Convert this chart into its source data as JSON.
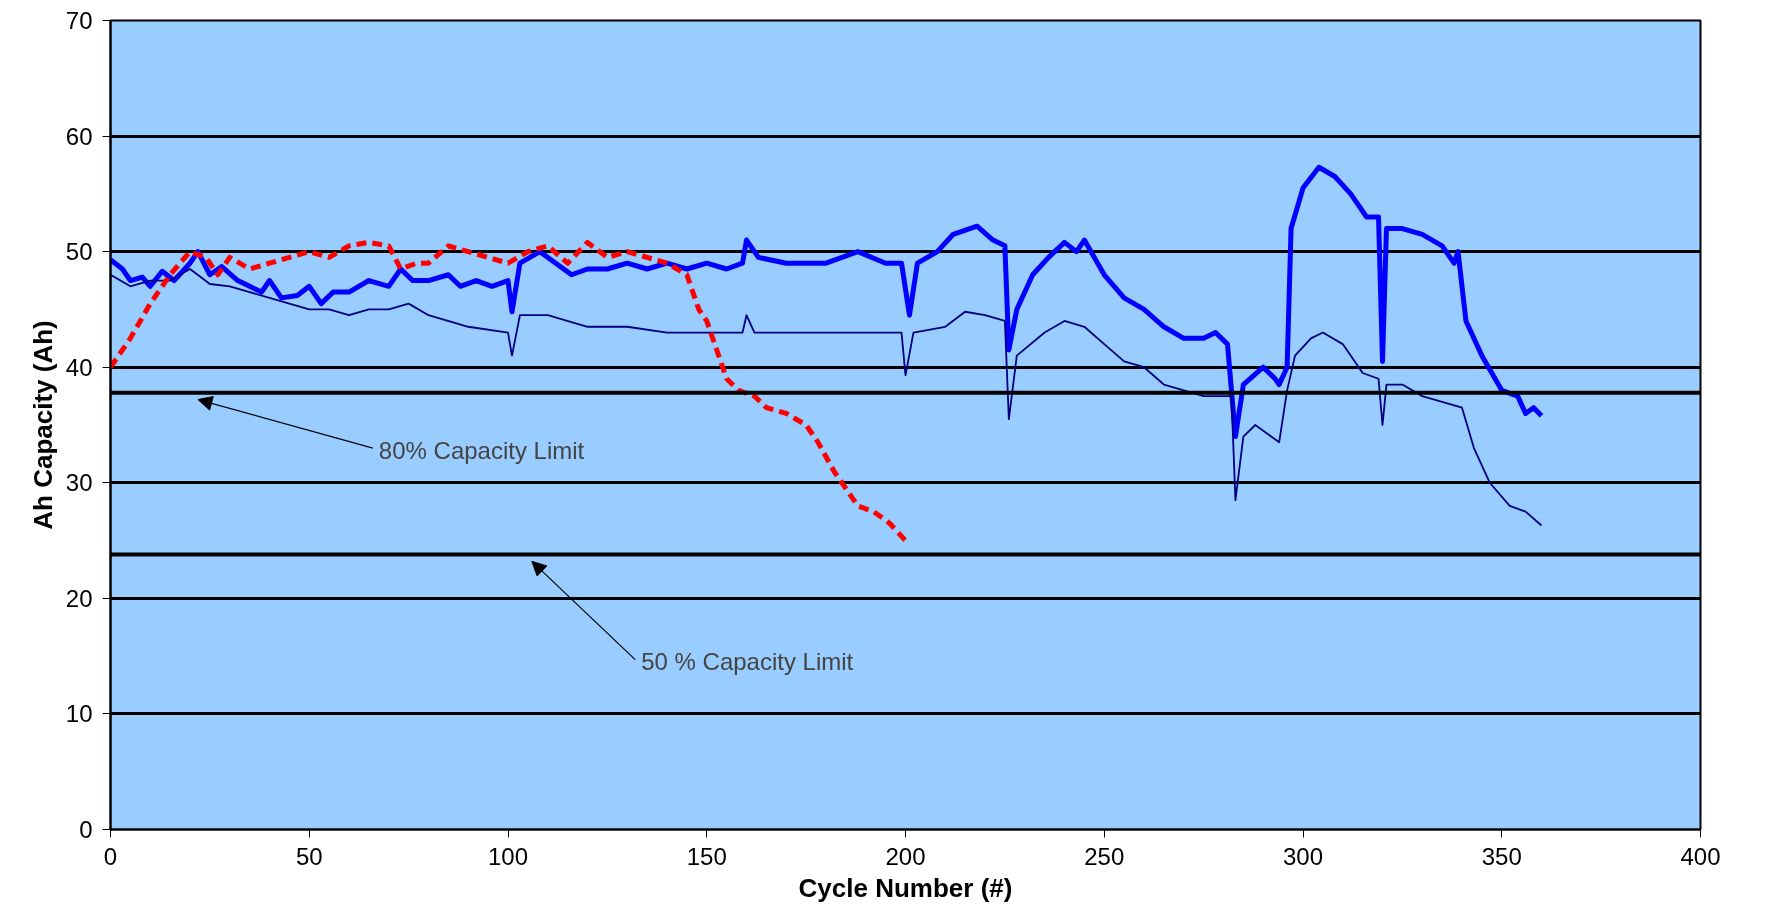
{
  "chart_data": {
    "type": "line",
    "xlabel": "Cycle Number (#)",
    "ylabel": "Ah Capacity (Ah)",
    "xlim": [
      0,
      400
    ],
    "xticks": [
      0,
      50,
      100,
      150,
      200,
      250,
      300,
      350,
      400
    ],
    "ylim": [
      0,
      70
    ],
    "yticks": [
      0,
      10,
      20,
      30,
      40,
      50,
      60,
      70
    ],
    "grid": "y",
    "marker": "none",
    "series": [
      {
        "color": "#0000ff",
        "line_style": "solid",
        "x": [
          0,
          3,
          5,
          8,
          10,
          13,
          16,
          20,
          22,
          25,
          28,
          32,
          35,
          38,
          40,
          43,
          47,
          50,
          53,
          56,
          60,
          65,
          70,
          73,
          76,
          80,
          85,
          88,
          92,
          96,
          100,
          101,
          103,
          108,
          112,
          116,
          120,
          125,
          130,
          135,
          140,
          145,
          150,
          155,
          159,
          160,
          163,
          170,
          180,
          188,
          195,
          199,
          201,
          203,
          208,
          212,
          218,
          222,
          225,
          226,
          228,
          232,
          236,
          240,
          243,
          245,
          250,
          255,
          260,
          265,
          270,
          275,
          278,
          281,
          283,
          285,
          290,
          293,
          294,
          296,
          297,
          300,
          304,
          308,
          312,
          316,
          319,
          320,
          321,
          325,
          330,
          335,
          338,
          339,
          341,
          345,
          350,
          354,
          356,
          358,
          360
        ],
        "values": [
          49.3,
          48.5,
          47.5,
          47.8,
          47,
          48.3,
          47.5,
          49,
          50,
          48,
          48.7,
          47.5,
          47,
          46.5,
          47.5,
          46,
          46.2,
          47,
          45.5,
          46.5,
          46.5,
          47.5,
          47,
          48.5,
          47.5,
          47.5,
          48,
          47,
          47.5,
          47,
          47.5,
          44.8,
          49,
          50,
          49,
          48,
          48.5,
          48.5,
          49,
          48.5,
          49,
          48.5,
          49,
          48.5,
          49,
          51,
          49.5,
          49,
          49,
          50,
          49,
          49,
          44.5,
          49,
          50,
          51.5,
          52.2,
          51,
          50.5,
          41.5,
          45,
          48,
          49.5,
          50.8,
          50,
          51,
          48,
          46,
          45,
          43.5,
          42.5,
          42.5,
          43,
          42,
          34,
          38.5,
          40,
          39,
          38.5,
          40,
          52,
          55.5,
          57.3,
          56.5,
          55,
          53,
          53,
          40.5,
          52,
          52,
          51.5,
          50.5,
          49,
          50,
          44,
          41,
          38,
          37.5,
          36,
          36.5,
          35.8
        ]
      },
      {
        "color": "#000080",
        "line_style": "solid",
        "x": [
          0,
          5,
          10,
          15,
          20,
          25,
          30,
          35,
          40,
          45,
          50,
          55,
          60,
          65,
          70,
          75,
          80,
          90,
          100,
          101,
          103,
          110,
          120,
          130,
          140,
          150,
          159,
          160,
          162,
          170,
          180,
          190,
          199,
          200,
          202,
          210,
          215,
          220,
          225,
          226,
          228,
          235,
          240,
          245,
          250,
          255,
          260,
          265,
          270,
          275,
          280,
          282,
          283,
          285,
          288,
          292,
          294,
          296,
          298,
          302,
          305,
          310,
          315,
          319,
          320,
          321,
          325,
          330,
          335,
          340,
          343,
          347,
          352,
          356,
          360
        ],
        "values": [
          48,
          47,
          47.5,
          47.5,
          48.5,
          47.2,
          47,
          46.5,
          46,
          45.5,
          45,
          45,
          44.5,
          45,
          45,
          45.5,
          44.5,
          43.5,
          43,
          41,
          44.5,
          44.5,
          43.5,
          43.5,
          43,
          43,
          43,
          44.5,
          43,
          43,
          43,
          43,
          43,
          39.3,
          43,
          43.5,
          44.8,
          44.5,
          44,
          35.5,
          41,
          43,
          44,
          43.5,
          42,
          40.5,
          40,
          38.5,
          38,
          37.5,
          37.5,
          37.5,
          28.5,
          34,
          35,
          34,
          33.5,
          38,
          41,
          42.5,
          43,
          42,
          39.5,
          39,
          35,
          38.5,
          38.5,
          37.5,
          37,
          36.5,
          33,
          30,
          28,
          27.5,
          26.3
        ]
      },
      {
        "color": "#ff0000",
        "line_style": "dashed",
        "x": [
          0,
          5,
          10,
          15,
          20,
          24,
          27,
          30,
          35,
          40,
          45,
          50,
          55,
          60,
          65,
          70,
          73,
          77,
          80,
          85,
          90,
          95,
          100,
          105,
          110,
          115,
          120,
          125,
          130,
          135,
          140,
          145,
          148,
          150,
          153,
          155,
          158,
          162,
          165,
          170,
          175,
          178,
          182,
          185,
          188,
          192,
          196,
          200
        ],
        "values": [
          40,
          42.5,
          45.5,
          48,
          50,
          49.5,
          48,
          49.5,
          48.5,
          49,
          49.5,
          50,
          49.5,
          50.5,
          50.8,
          50.5,
          48.5,
          49,
          49,
          50.5,
          50,
          49.5,
          49,
          50,
          50.5,
          49,
          50.8,
          49.5,
          50,
          49.5,
          49,
          48,
          45,
          44,
          41,
          39,
          38,
          37.5,
          36.5,
          36,
          35,
          33.5,
          31,
          29.5,
          28,
          27.5,
          26.5,
          25
        ]
      }
    ],
    "ref_lines": [
      {
        "axis": "y",
        "value": 37.8,
        "label": "80% Capacity Limit",
        "color": "#000000"
      },
      {
        "axis": "y",
        "value": 23.8,
        "label": "50 % Capacity Limit",
        "color": "#000000"
      }
    ]
  }
}
